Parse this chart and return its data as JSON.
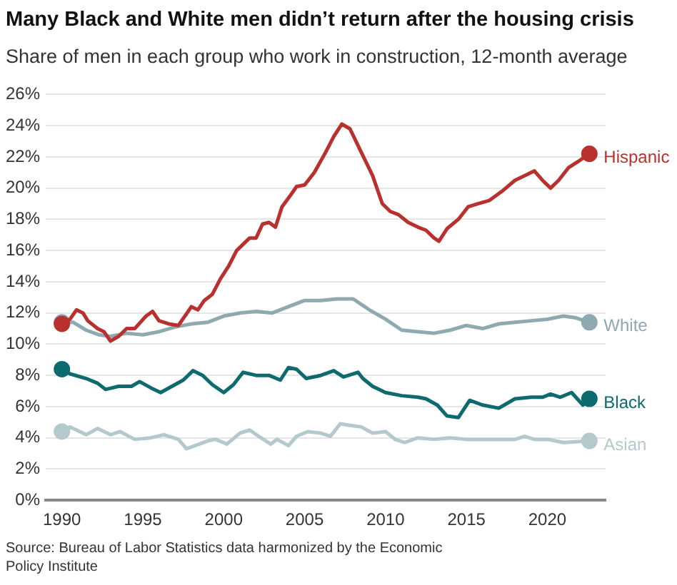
{
  "chart_data": {
    "type": "line",
    "title": "Many Black and White men didn’t return after the housing crisis",
    "subtitle": "Share of men in each group who work in construction, 12-month average",
    "annotations": [
      "Source: Bureau of Labor Statistics data harmonized by the Economic Policy Institute"
    ],
    "xlim": [
      1989,
      2023.6
    ],
    "xticks": [
      1990,
      1995,
      2000,
      2005,
      2010,
      2015,
      2020
    ],
    "ylim": [
      0,
      26
    ],
    "yticks": [
      {
        "value": 0,
        "label": "0%"
      },
      {
        "value": 2,
        "label": "2%"
      },
      {
        "value": 4,
        "label": "4%"
      },
      {
        "value": 6,
        "label": "6%"
      },
      {
        "value": 8,
        "label": "8%"
      },
      {
        "value": 10,
        "label": "10%"
      },
      {
        "value": 12,
        "label": "12%"
      },
      {
        "value": 14,
        "label": "14%"
      },
      {
        "value": 16,
        "label": "16%"
      },
      {
        "value": 18,
        "label": "18%"
      },
      {
        "value": 20,
        "label": "20%"
      },
      {
        "value": 22,
        "label": "22%"
      },
      {
        "value": 24,
        "label": "24%"
      },
      {
        "value": 26,
        "label": "26%"
      }
    ],
    "grid": "y",
    "legend": false,
    "line_style": "solid",
    "series": [
      {
        "name": "Hispanic",
        "color": "#b8312f",
        "x": [
          1990,
          1990.5,
          1990.9,
          1991.3,
          1991.6,
          1992.2,
          1992.6,
          1993,
          1993.5,
          1994,
          1994.5,
          1995.2,
          1995.6,
          1996,
          1996.6,
          1997.2,
          1997.6,
          1998,
          1998.4,
          1998.8,
          1999.3,
          1999.8,
          2000.3,
          2000.8,
          2001.2,
          2001.6,
          2002,
          2002.4,
          2002.8,
          2003.2,
          2003.6,
          2004.1,
          2004.5,
          2005,
          2005.6,
          2006.3,
          2006.8,
          2007.3,
          2007.8,
          2008.5,
          2009.2,
          2009.8,
          2010.3,
          2010.8,
          2011.4,
          2012,
          2012.5,
          2013,
          2013.3,
          2013.8,
          2014.5,
          2015.1,
          2015.7,
          2016.4,
          2017.2,
          2018,
          2018.6,
          2019.2,
          2019.7,
          2020.2,
          2020.7,
          2021.3,
          2021.9,
          2022.6
        ],
        "values": [
          11.3,
          11.6,
          12.2,
          12.0,
          11.5,
          11.0,
          10.8,
          10.2,
          10.5,
          11.0,
          11.0,
          11.8,
          12.1,
          11.5,
          11.3,
          11.2,
          11.8,
          12.4,
          12.2,
          12.8,
          13.2,
          14.2,
          15.0,
          16.0,
          16.4,
          16.8,
          16.8,
          17.7,
          17.8,
          17.5,
          18.8,
          19.5,
          20.1,
          20.2,
          21.0,
          22.3,
          23.3,
          24.1,
          23.8,
          22.3,
          20.8,
          19.0,
          18.5,
          18.3,
          17.8,
          17.5,
          17.3,
          16.8,
          16.6,
          17.4,
          18.0,
          18.8,
          19.0,
          19.2,
          19.8,
          20.5,
          20.8,
          21.1,
          20.5,
          20.0,
          20.5,
          21.3,
          21.7,
          22.2
        ]
      },
      {
        "name": "White",
        "color": "#8fa9b0",
        "x": [
          1990,
          1990.7,
          1991.5,
          1992.3,
          1993,
          1994,
          1995,
          1996,
          1997,
          1998,
          1999,
          2000,
          2001,
          2002,
          2003,
          2004,
          2005,
          2006,
          2007,
          2008,
          2009,
          2010,
          2011,
          2012,
          2013,
          2014,
          2015,
          2016,
          2017,
          2018,
          2019,
          2020,
          2021,
          2021.7,
          2022.6
        ],
        "values": [
          11.4,
          11.4,
          10.9,
          10.6,
          10.5,
          10.7,
          10.6,
          10.8,
          11.1,
          11.3,
          11.4,
          11.8,
          12.0,
          12.1,
          12.0,
          12.4,
          12.8,
          12.8,
          12.9,
          12.9,
          12.2,
          11.6,
          10.9,
          10.8,
          10.7,
          10.9,
          11.2,
          11.0,
          11.3,
          11.4,
          11.5,
          11.6,
          11.8,
          11.7,
          11.4
        ]
      },
      {
        "name": "Black",
        "color": "#0d6b6f",
        "x": [
          1990,
          1990.5,
          1991.5,
          1992.2,
          1992.7,
          1993.5,
          1994.3,
          1994.8,
          1995.5,
          1996.1,
          1996.8,
          1997.5,
          1998.1,
          1998.7,
          1999.3,
          2000,
          2000.6,
          2001.2,
          2002,
          2002.8,
          2003.5,
          2004,
          2004.5,
          2005.1,
          2006,
          2006.8,
          2007.4,
          2008.3,
          2008.6,
          2009.2,
          2010,
          2011,
          2012,
          2012.5,
          2013.2,
          2013.8,
          2014.5,
          2015.2,
          2016,
          2017,
          2018,
          2019,
          2019.7,
          2020.2,
          2020.8,
          2021.5,
          2022.2,
          2022.6
        ],
        "values": [
          8.4,
          8.1,
          7.8,
          7.5,
          7.1,
          7.3,
          7.3,
          7.6,
          7.2,
          6.9,
          7.3,
          7.7,
          8.3,
          8.0,
          7.4,
          6.9,
          7.4,
          8.2,
          8.0,
          8.0,
          7.7,
          8.5,
          8.4,
          7.8,
          8.0,
          8.3,
          7.9,
          8.2,
          7.8,
          7.3,
          6.9,
          6.7,
          6.6,
          6.5,
          6.1,
          5.4,
          5.3,
          6.4,
          6.1,
          5.9,
          6.5,
          6.6,
          6.6,
          6.8,
          6.6,
          6.9,
          6.1,
          6.5
        ]
      },
      {
        "name": "Asian",
        "color": "#b4c9cc",
        "x": [
          1990,
          1990.5,
          1991.5,
          1992.2,
          1993,
          1993.6,
          1994.5,
          1995.5,
          1996.3,
          1997.2,
          1997.7,
          1998.5,
          1999,
          1999.5,
          2000.2,
          2001,
          2001.6,
          2002.3,
          2002.9,
          2003.3,
          2004,
          2004.5,
          2005.2,
          2006,
          2006.6,
          2007.2,
          2007.8,
          2008.5,
          2009.2,
          2010,
          2010.6,
          2011.2,
          2012,
          2013,
          2014,
          2015,
          2016,
          2017,
          2018,
          2018.6,
          2019.2,
          2020,
          2021,
          2022.6
        ],
        "values": [
          4.4,
          4.7,
          4.2,
          4.6,
          4.2,
          4.4,
          3.9,
          4.0,
          4.2,
          3.9,
          3.3,
          3.6,
          3.8,
          3.9,
          3.6,
          4.3,
          4.5,
          4.0,
          3.6,
          3.9,
          3.5,
          4.1,
          4.4,
          4.3,
          4.1,
          4.9,
          4.8,
          4.7,
          4.3,
          4.4,
          3.9,
          3.7,
          4.0,
          3.9,
          4.0,
          3.9,
          3.9,
          3.9,
          3.9,
          4.1,
          3.9,
          3.9,
          3.7,
          3.8
        ]
      }
    ]
  }
}
